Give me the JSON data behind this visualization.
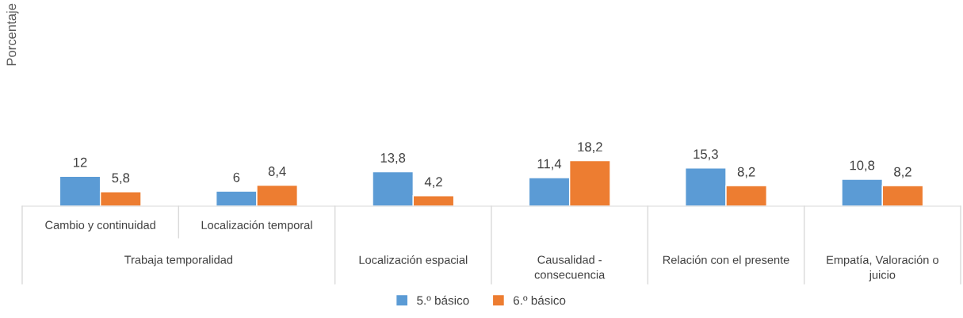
{
  "chart_data": {
    "type": "bar",
    "categories": [
      "Cambio y continuidad",
      "Localización temporal",
      "Localización espacial",
      "Causalidad - consecuencia",
      "Relación con el presente",
      "Empatía, Valoración o juicio"
    ],
    "series": [
      {
        "name": "5.º básico",
        "color": "#5b9bd5",
        "values": [
          12,
          6,
          13.8,
          11.4,
          15.3,
          10.8
        ],
        "value_labels": [
          "12",
          "6",
          "13,8",
          "11,4",
          "15,3",
          "10,8"
        ]
      },
      {
        "name": "6.º básico",
        "color": "#ed7d31",
        "values": [
          5.8,
          8.4,
          4.2,
          18.2,
          8.2,
          8.2
        ],
        "value_labels": [
          "5,8",
          "8,4",
          "4,2",
          "18,2",
          "8,2",
          "8,2"
        ]
      }
    ],
    "annotations": [
      "Trabaja temporalidad",
      "Porcentaje"
    ],
    "legend": "bottom"
  }
}
